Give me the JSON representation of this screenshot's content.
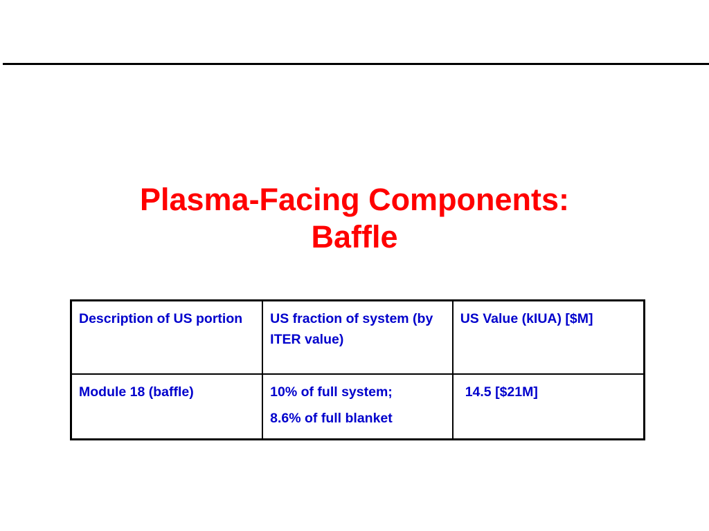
{
  "slide": {
    "title_line1": "Plasma-Facing Components:",
    "title_line2": "Baffle",
    "colors": {
      "title": "#ff0000",
      "table_text": "#0000cc",
      "rule": "#000000"
    }
  },
  "table": {
    "headers": [
      "Description of US portion",
      "US fraction of system (by ITER value)",
      "US Value (kIUA) [$M]"
    ],
    "rows": [
      {
        "description": "Module 18 (baffle)",
        "fraction_line1": "10% of full system;",
        "fraction_line2": "8.6% of full blanket",
        "value": "14.5 [$21M]"
      }
    ]
  }
}
